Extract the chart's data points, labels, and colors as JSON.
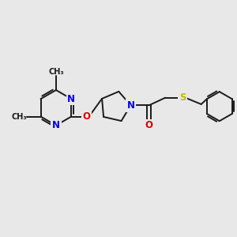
{
  "bg_color": "#e8e8e8",
  "bond_color": "#1a1a1a",
  "N_color": "#0000ee",
  "O_color": "#dd0000",
  "S_color": "#bbbb00",
  "lw": 1.4,
  "fs": 8.5,
  "xlim": [
    0,
    11
  ],
  "ylim": [
    0,
    9
  ]
}
